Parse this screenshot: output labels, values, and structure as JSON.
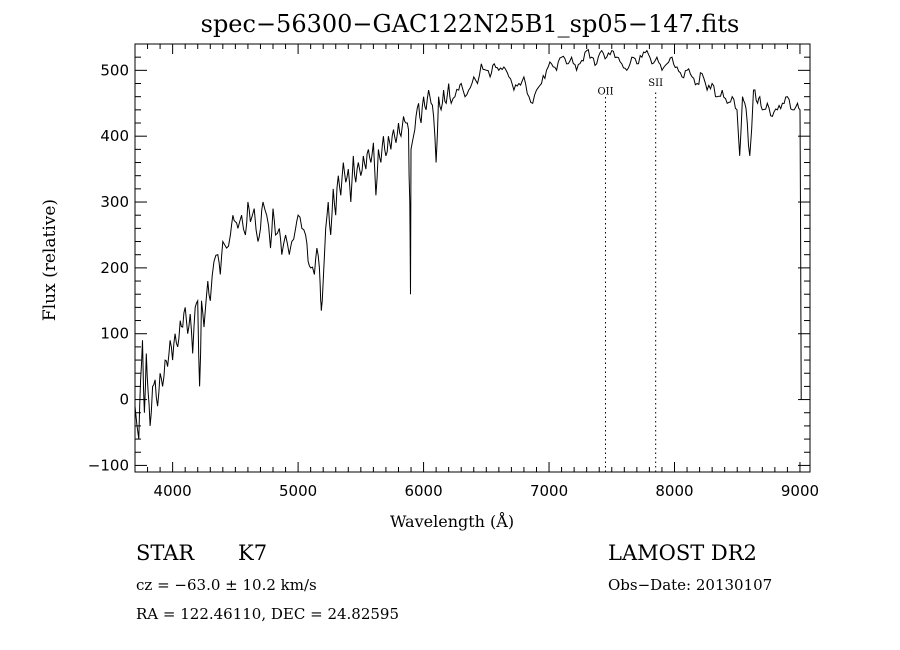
{
  "chart_data": {
    "type": "line",
    "title": "spec−56300−GAC122N25B1_sp05−147.fits",
    "xlabel": "Wavelength (Å)",
    "ylabel": "Flux (relative)",
    "xlim": [
      3700,
      9080
    ],
    "ylim": [
      -110,
      540
    ],
    "xticks": [
      4000,
      5000,
      6000,
      7000,
      8000,
      9000
    ],
    "yticks": [
      -100,
      0,
      100,
      200,
      300,
      400,
      500
    ],
    "ytick_labels": [
      "−100",
      "0",
      "100",
      "200",
      "300",
      "400",
      "500"
    ],
    "grid": false,
    "series": [
      {
        "x": [
          3700,
          3730,
          3745,
          3760,
          3775,
          3790,
          3805,
          3820,
          3840,
          3860,
          3880,
          3900,
          3920,
          3940,
          3960,
          3980,
          4000,
          4020,
          4040,
          4060,
          4080,
          4100,
          4120,
          4140,
          4160,
          4180,
          4200,
          4215,
          4230,
          4250,
          4280,
          4300,
          4330,
          4360,
          4380,
          4400,
          4430,
          4460,
          4480,
          4500,
          4520,
          4550,
          4580,
          4600,
          4620,
          4650,
          4680,
          4700,
          4720,
          4750,
          4780,
          4800,
          4820,
          4850,
          4870,
          4900,
          4930,
          4950,
          4980,
          5000,
          5030,
          5060,
          5080,
          5100,
          5130,
          5150,
          5170,
          5180,
          5185,
          5200,
          5220,
          5240,
          5260,
          5280,
          5300,
          5320,
          5340,
          5360,
          5380,
          5400,
          5420,
          5440,
          5460,
          5480,
          5500,
          5520,
          5540,
          5560,
          5580,
          5600,
          5620,
          5640,
          5660,
          5680,
          5700,
          5720,
          5740,
          5760,
          5780,
          5800,
          5820,
          5840,
          5860,
          5880,
          5890,
          5896,
          5900,
          5920,
          5940,
          5960,
          5980,
          6000,
          6020,
          6040,
          6060,
          6080,
          6100,
          6120,
          6140,
          6160,
          6180,
          6200,
          6220,
          6250,
          6280,
          6300,
          6330,
          6360,
          6400,
          6430,
          6460,
          6500,
          6530,
          6563,
          6600,
          6640,
          6680,
          6720,
          6760,
          6800,
          6840,
          6870,
          6900,
          6940,
          6980,
          7020,
          7060,
          7100,
          7140,
          7180,
          7220,
          7260,
          7300,
          7340,
          7380,
          7420,
          7460,
          7500,
          7540,
          7580,
          7620,
          7660,
          7700,
          7740,
          7780,
          7820,
          7860,
          7900,
          7940,
          7980,
          8020,
          8060,
          8100,
          8140,
          8180,
          8220,
          8260,
          8300,
          8340,
          8380,
          8420,
          8460,
          8498,
          8520,
          8542,
          8560,
          8580,
          8600,
          8630,
          8662,
          8680,
          8700,
          8740,
          8780,
          8820,
          8860,
          8900,
          8940,
          8980,
          9000,
          9010
        ],
        "y": [
          -10,
          -60,
          30,
          90,
          -20,
          70,
          10,
          -40,
          20,
          30,
          -10,
          40,
          20,
          60,
          50,
          90,
          60,
          100,
          80,
          120,
          110,
          140,
          100,
          130,
          70,
          140,
          150,
          20,
          150,
          110,
          180,
          150,
          210,
          220,
          190,
          240,
          230,
          250,
          280,
          270,
          260,
          280,
          250,
          300,
          270,
          290,
          240,
          260,
          300,
          280,
          230,
          290,
          250,
          260,
          220,
          250,
          220,
          240,
          260,
          280,
          260,
          250,
          210,
          200,
          190,
          230,
          200,
          150,
          135,
          180,
          260,
          300,
          250,
          320,
          280,
          340,
          310,
          360,
          330,
          350,
          300,
          370,
          330,
          360,
          340,
          370,
          350,
          380,
          360,
          390,
          310,
          380,
          360,
          400,
          370,
          400,
          380,
          410,
          390,
          420,
          400,
          430,
          420,
          410,
          300,
          160,
          380,
          400,
          430,
          450,
          420,
          460,
          440,
          470,
          450,
          430,
          360,
          460,
          440,
          470,
          450,
          480,
          450,
          460,
          470,
          480,
          460,
          470,
          490,
          480,
          510,
          500,
          490,
          510,
          500,
          505,
          490,
          470,
          480,
          490,
          460,
          450,
          470,
          480,
          500,
          510,
          500,
          520,
          510,
          520,
          500,
          515,
          530,
          520,
          510,
          530,
          520,
          530,
          520,
          510,
          500,
          520,
          510,
          520,
          530,
          510,
          520,
          500,
          510,
          520,
          505,
          490,
          500,
          490,
          480,
          495,
          470,
          480,
          460,
          470,
          450,
          460,
          440,
          370,
          460,
          450,
          420,
          370,
          470,
          450,
          460,
          440,
          450,
          430,
          440,
          450,
          460,
          440,
          450,
          440,
          0
        ]
      }
    ],
    "line_markers": [
      {
        "label": "OII",
        "x": 7450
      },
      {
        "label": "SII",
        "x": 7850
      }
    ]
  },
  "info": {
    "object_type": "STAR",
    "subclass": "K7",
    "release": "LAMOST DR2",
    "cz": "cz = −63.0 ± 10.2 km/s",
    "obs_date": "Obs−Date: 20130107",
    "radec": "RA = 122.46110, DEC =  24.82595"
  }
}
